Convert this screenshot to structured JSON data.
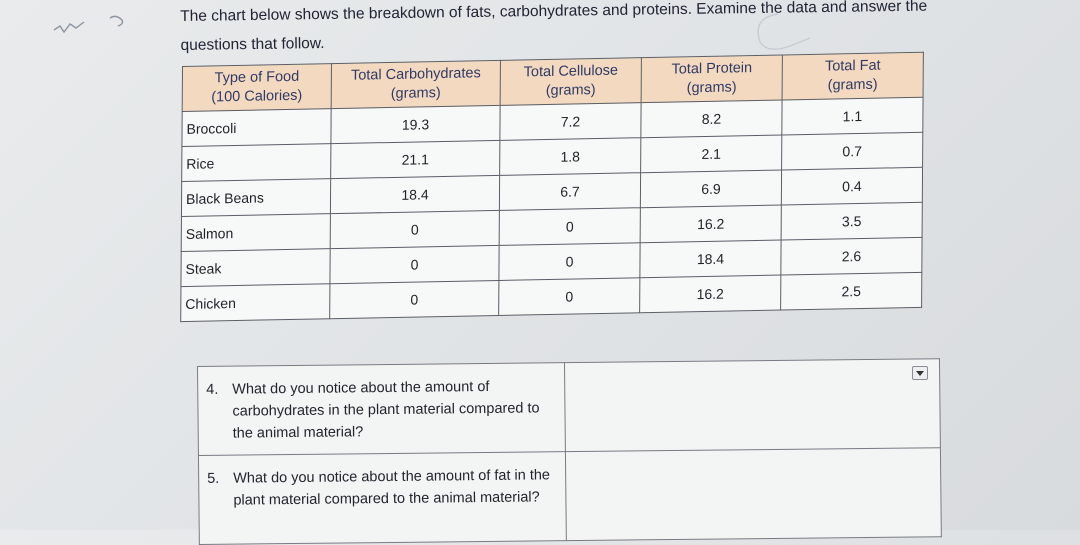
{
  "intro": "The chart below shows the breakdown of fats, carbohydrates and proteins. Examine the data and answer the questions that follow.",
  "table": {
    "headers": [
      [
        "Type of Food",
        "(100 Calories)"
      ],
      [
        "Total Carbohydrates",
        "(grams)"
      ],
      [
        "Total Cellulose",
        "(grams)"
      ],
      [
        "Total Protein",
        "(grams)"
      ],
      [
        "Total Fat",
        "(grams)"
      ]
    ],
    "rows": [
      [
        "Broccoli",
        "19.3",
        "7.2",
        "8.2",
        "1.1"
      ],
      [
        "Rice",
        "21.1",
        "1.8",
        "2.1",
        "0.7"
      ],
      [
        "Black Beans",
        "18.4",
        "6.7",
        "6.9",
        "0.4"
      ],
      [
        "Salmon",
        "0",
        "0",
        "16.2",
        "3.5"
      ],
      [
        "Steak",
        "0",
        "0",
        "18.4",
        "2.6"
      ],
      [
        "Chicken",
        "0",
        "0",
        "16.2",
        "2.5"
      ]
    ]
  },
  "questions": [
    {
      "num": "4.",
      "text": "What do you notice about the amount of carbohydrates in the plant material compared to the animal material?",
      "answer": ""
    },
    {
      "num": "5.",
      "text": "What do you notice about the amount of fat in the plant material compared to the animal material?",
      "answer": ""
    }
  ],
  "icons": {
    "dropdown": "chevron-down-icon"
  }
}
